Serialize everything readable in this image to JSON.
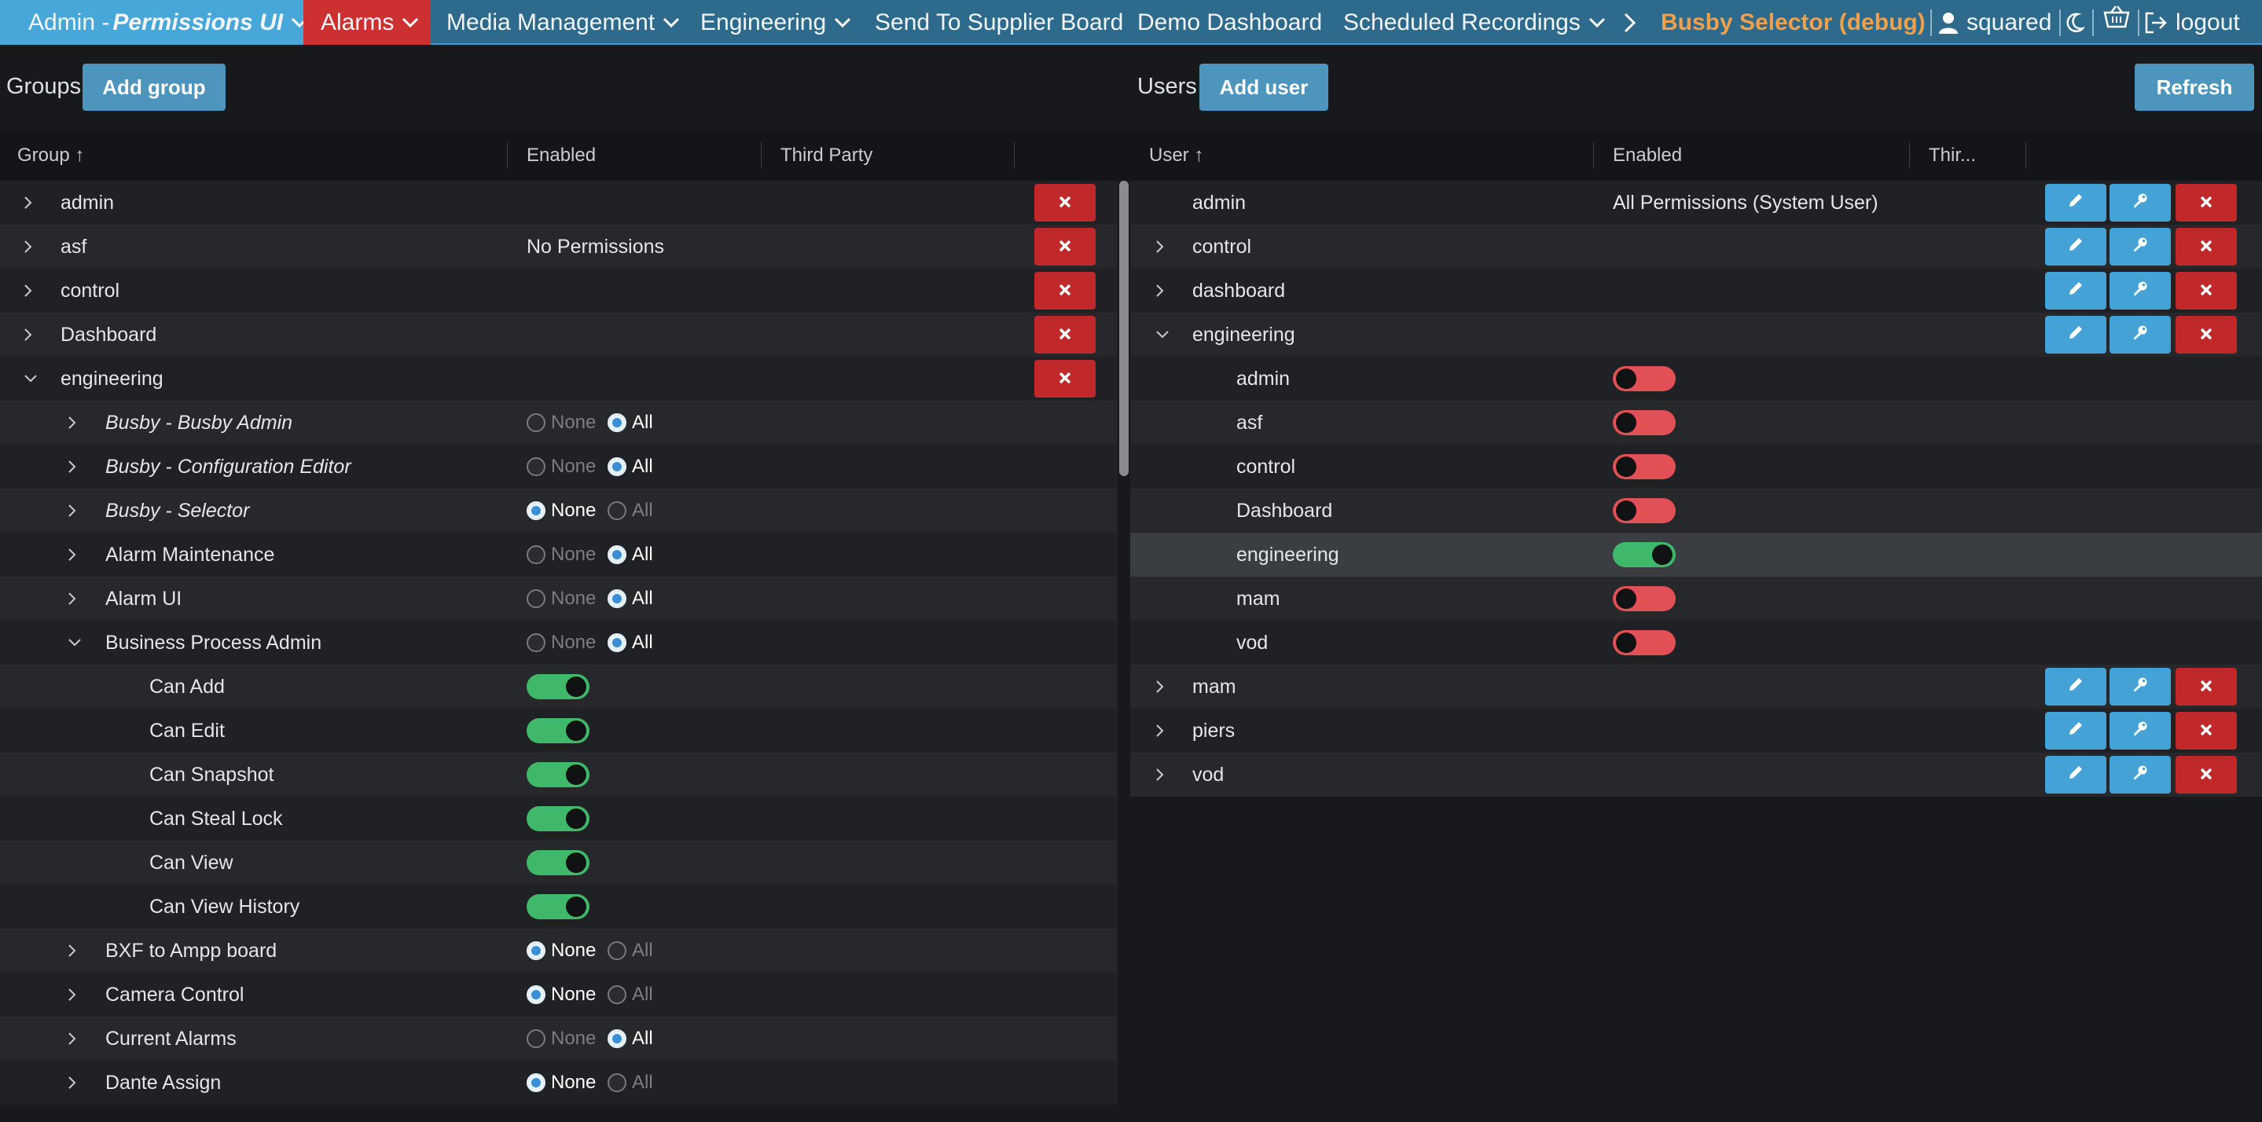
{
  "nav": {
    "items": [
      {
        "label": "Admin - ",
        "label_em": "Permissions UI"
      },
      {
        "label": "Alarms"
      },
      {
        "label": "Media Management"
      },
      {
        "label": "Engineering"
      },
      {
        "label": "Send To Supplier Board"
      },
      {
        "label": "Demo Dashboard"
      },
      {
        "label": "Scheduled Recordings"
      }
    ],
    "debug_label": "Busby Selector (debug)",
    "user": "squared",
    "logout": "logout",
    "icons": [
      "chevron-right-icon",
      "user-icon",
      "moon-icon",
      "basket-icon",
      "logout-icon"
    ]
  },
  "groups": {
    "title": "Groups",
    "add_label": "Add group",
    "headers": {
      "group": "Group ↑",
      "enabled": "Enabled",
      "third_party": "Third Party"
    },
    "rows": [
      {
        "name": "admin",
        "enabled": ""
      },
      {
        "name": "asf",
        "enabled": "No Permissions"
      },
      {
        "name": "control",
        "enabled": ""
      },
      {
        "name": "Dashboard",
        "enabled": ""
      },
      {
        "name": "engineering",
        "enabled": "",
        "expanded": true
      }
    ],
    "perms": [
      {
        "name": "Busby - Busby Admin",
        "italic": true,
        "value": "All"
      },
      {
        "name": "Busby - Configuration Editor",
        "italic": true,
        "value": "All"
      },
      {
        "name": "Busby - Selector",
        "italic": true,
        "value": "None"
      },
      {
        "name": "Alarm Maintenance",
        "value": "All"
      },
      {
        "name": "Alarm UI",
        "value": "All"
      },
      {
        "name": "Business Process Admin",
        "value": "All",
        "expanded": true,
        "children": [
          {
            "name": "Can Add",
            "on": true
          },
          {
            "name": "Can Edit",
            "on": true
          },
          {
            "name": "Can Snapshot",
            "on": true
          },
          {
            "name": "Can Steal Lock",
            "on": true
          },
          {
            "name": "Can View",
            "on": true
          },
          {
            "name": "Can View History",
            "on": true
          }
        ]
      },
      {
        "name": "BXF to Ampp board",
        "value": "None"
      },
      {
        "name": "Camera Control",
        "value": "None"
      },
      {
        "name": "Current Alarms",
        "value": "All"
      },
      {
        "name": "Dante Assign",
        "value": "None"
      }
    ],
    "none_label": "None",
    "all_label": "All"
  },
  "users": {
    "title": "Users",
    "add_label": "Add user",
    "refresh_label": "Refresh",
    "headers": {
      "user": "User ↑",
      "enabled": "Enabled",
      "third_party": "Thir..."
    },
    "rows": [
      {
        "name": "admin",
        "enabled": "All Permissions (System User)",
        "caret": false
      },
      {
        "name": "control",
        "enabled": ""
      },
      {
        "name": "dashboard",
        "enabled": ""
      },
      {
        "name": "engineering",
        "enabled": "",
        "expanded": true,
        "children": [
          {
            "name": "admin",
            "on": false
          },
          {
            "name": "asf",
            "on": false
          },
          {
            "name": "control",
            "on": false
          },
          {
            "name": "Dashboard",
            "on": false
          },
          {
            "name": "engineering",
            "on": true,
            "highlight": true
          },
          {
            "name": "mam",
            "on": false
          },
          {
            "name": "vod",
            "on": false
          }
        ]
      },
      {
        "name": "mam",
        "enabled": ""
      },
      {
        "name": "piers",
        "enabled": ""
      },
      {
        "name": "vod",
        "enabled": ""
      }
    ]
  },
  "colors": {
    "nav_bg": "#2d6a8c",
    "nav_active": "#47a7d9",
    "nav_alarm": "#cc3030",
    "debug": "#f0a04a",
    "button_blue": "#4e95bd",
    "delete_red": "#c0282a",
    "toggle_on": "#3fb86a",
    "toggle_off": "#e05055"
  }
}
